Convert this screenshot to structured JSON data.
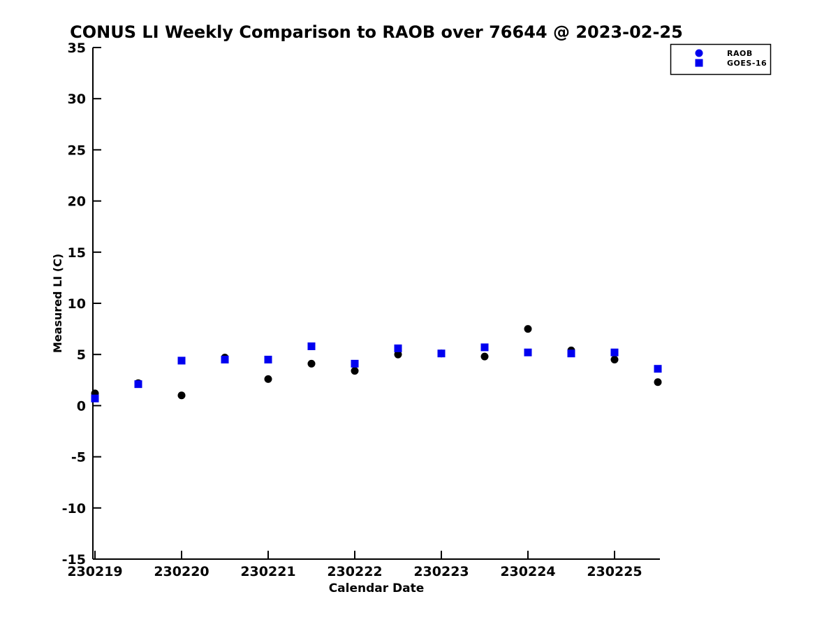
{
  "chart_data": {
    "type": "scatter",
    "title": "CONUS LI Weekly Comparison to RAOB over 76644 @ 2023-02-25",
    "xlabel": "Calendar Date",
    "ylabel": "Measured LI (C)",
    "x": [
      230219,
      230219.5,
      230220,
      230220.5,
      230221,
      230221.5,
      230222,
      230222.5,
      230223,
      230223.5,
      230224,
      230224.5,
      230225,
      230225.5
    ],
    "series": [
      {
        "name": "RAOB",
        "marker": "circle",
        "plot_color": "#000000",
        "legend_color": "#0000ee",
        "values": [
          1.2,
          2.2,
          1.0,
          4.7,
          2.6,
          4.1,
          3.4,
          5.0,
          5.1,
          4.8,
          7.5,
          5.4,
          4.5,
          2.3
        ]
      },
      {
        "name": "GOES-16",
        "marker": "square",
        "plot_color": "#0000f0",
        "legend_color": "#0000ee",
        "values": [
          0.7,
          2.1,
          4.4,
          4.5,
          4.5,
          5.8,
          4.1,
          5.6,
          5.1,
          5.7,
          5.2,
          5.1,
          5.2,
          3.6
        ]
      }
    ],
    "xticks": [
      230219,
      230220,
      230221,
      230222,
      230223,
      230224,
      230225
    ],
    "xtick_labels": [
      "230219",
      "230220",
      "230221",
      "230222",
      "230223",
      "230224",
      "230225"
    ],
    "yticks": [
      35,
      30,
      25,
      20,
      15,
      10,
      5,
      0,
      -5,
      -10,
      -15
    ],
    "ytick_labels": [
      "35",
      "30",
      "25",
      "20",
      "15",
      "10",
      "5",
      "0",
      "-5",
      "-10",
      "-15"
    ],
    "ylim": [
      -15,
      35
    ],
    "xlim": [
      230219,
      230225.55
    ],
    "grid": false,
    "legend_position": "top-right-outside",
    "axis_color": "#000000",
    "background_color": "#ffffff"
  }
}
